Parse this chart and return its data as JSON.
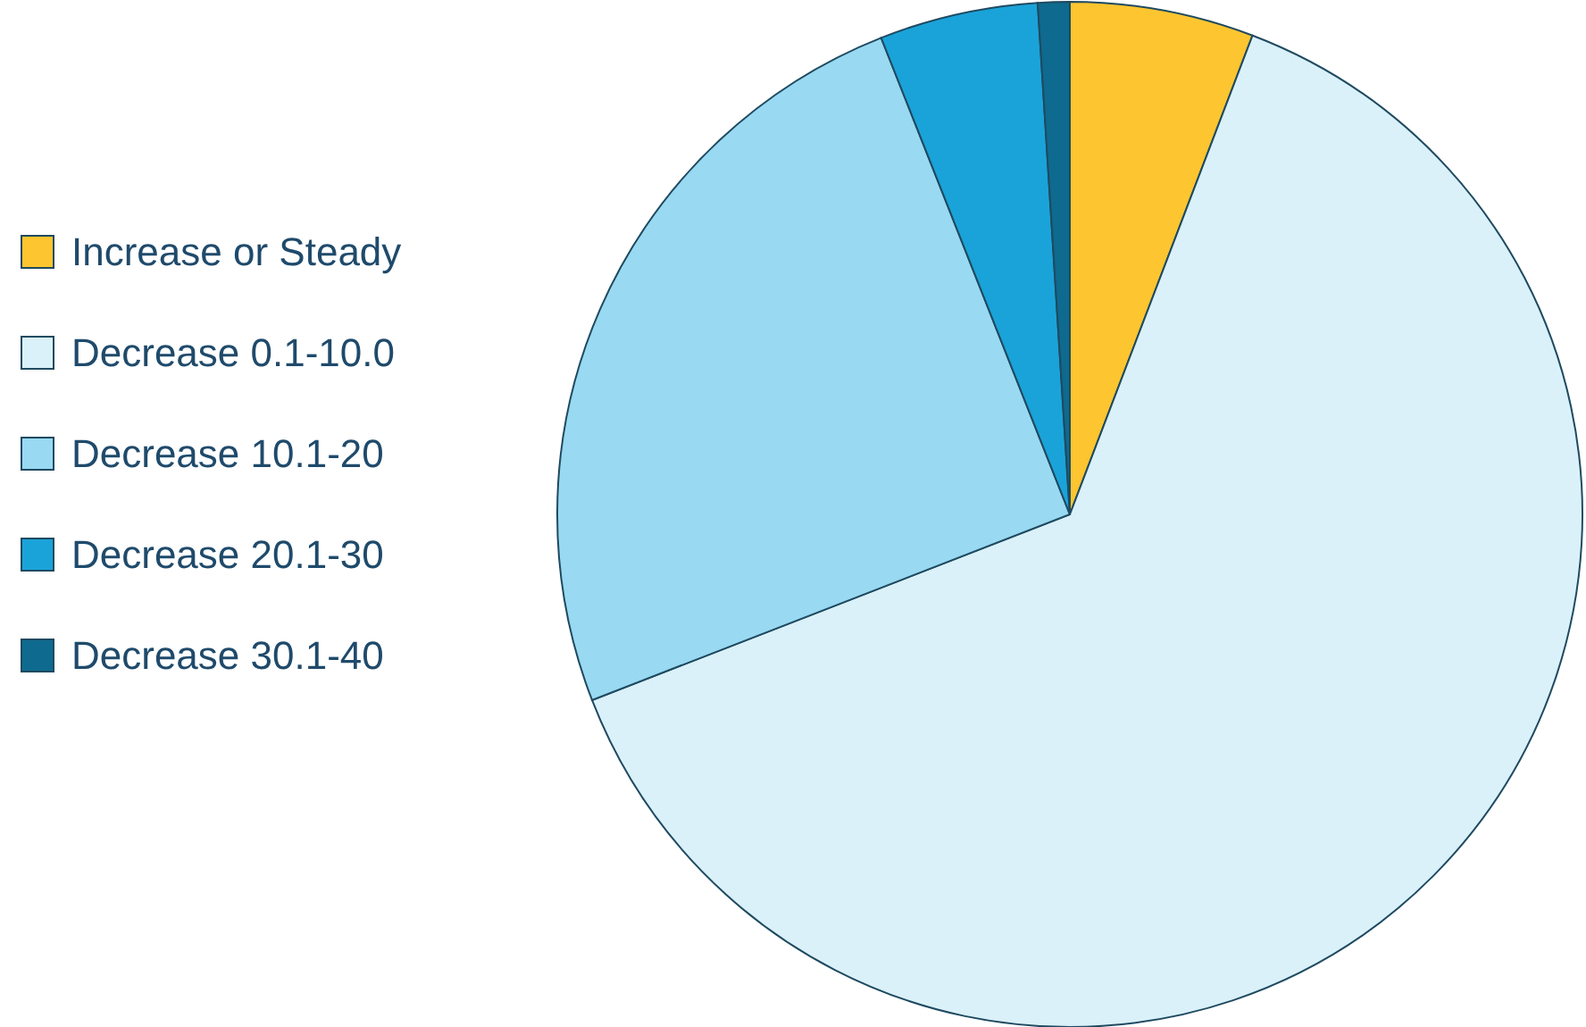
{
  "chart_data": {
    "type": "pie",
    "categories": [
      "Increase or Steady",
      "Decrease 0.1-10.0",
      "Decrease 10.1-20",
      "Decrease 20.1-30",
      "Decrease 30.1-40"
    ],
    "values": [
      5.8,
      63.3,
      24.9,
      5.0,
      1.0
    ],
    "colors": [
      "#fdc530",
      "#daf1fa",
      "#99d9f2",
      "#1aa3d9",
      "#0e6a8e"
    ],
    "legend": "left"
  }
}
